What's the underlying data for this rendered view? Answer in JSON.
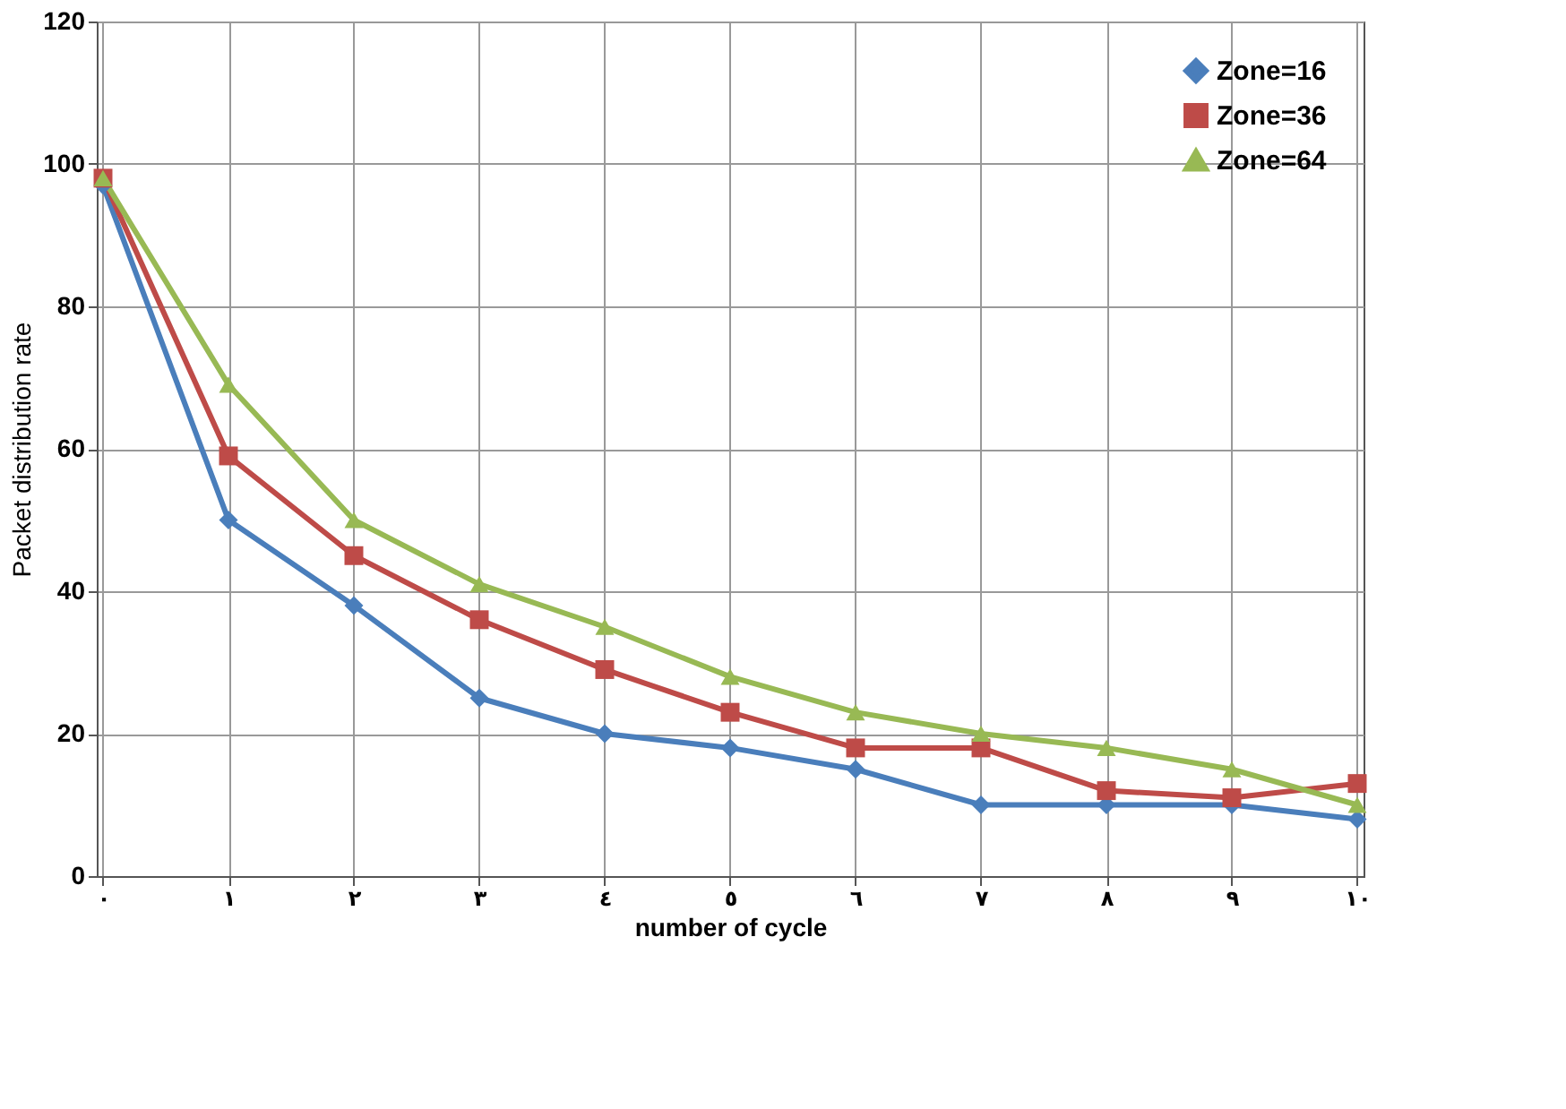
{
  "chart_data": {
    "type": "line",
    "xlabel": "number of cycle",
    "ylabel": "Packet distribution rate",
    "x": [
      0,
      1,
      2,
      3,
      4,
      5,
      6,
      7,
      8,
      9,
      10
    ],
    "xlim": [
      -0.05,
      10.05
    ],
    "xticks": [
      {
        "value": 0,
        "label": "٠"
      },
      {
        "value": 1,
        "label": "١"
      },
      {
        "value": 2,
        "label": "٢"
      },
      {
        "value": 3,
        "label": "٣"
      },
      {
        "value": 4,
        "label": "٤"
      },
      {
        "value": 5,
        "label": "٥"
      },
      {
        "value": 6,
        "label": "٦"
      },
      {
        "value": 7,
        "label": "٧"
      },
      {
        "value": 8,
        "label": "٨"
      },
      {
        "value": 9,
        "label": "٩"
      },
      {
        "value": 10,
        "label": "١٠"
      }
    ],
    "ylim": [
      0,
      120
    ],
    "yticks": [
      0,
      20,
      40,
      60,
      80,
      100,
      120
    ],
    "series": [
      {
        "name": "Zone=16",
        "color": "#4a7ebb",
        "marker": "diamond",
        "values": [
          97,
          50,
          38,
          25,
          20,
          18,
          15,
          10,
          10,
          10,
          8
        ]
      },
      {
        "name": "Zone=36",
        "color": "#be4b48",
        "marker": "square",
        "values": [
          98,
          59,
          45,
          36,
          29,
          23,
          18,
          18,
          12,
          11,
          13
        ]
      },
      {
        "name": "Zone=64",
        "color": "#98b954",
        "marker": "triangle",
        "values": [
          98,
          69,
          50,
          41,
          35,
          28,
          23,
          20,
          18,
          15,
          10
        ]
      }
    ],
    "grid": true,
    "legend": "top right",
    "line_style": "solid"
  }
}
